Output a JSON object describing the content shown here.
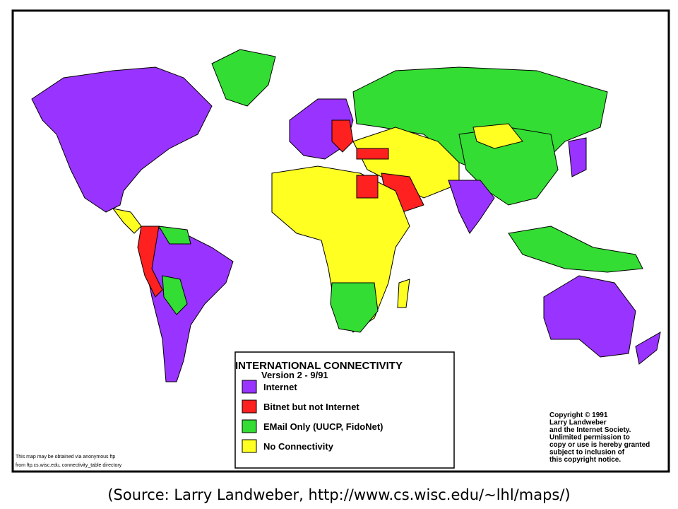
{
  "legend": {
    "title": "INTERNATIONAL CONNECTIVITY",
    "version": "Version 2  - 9/91",
    "items": [
      {
        "label": "Internet",
        "color": "#9933ff"
      },
      {
        "label": "Bitnet but not Internet",
        "color": "#ff2020"
      },
      {
        "label": "EMail Only (UUCP, FidoNet)",
        "color": "#33dd33"
      },
      {
        "label": "No Connectivity",
        "color": "#ffff22"
      }
    ]
  },
  "copyright": [
    "Copyright © 1991",
    "Larry Landweber",
    "and the Internet Society.",
    "Unlimited permission to",
    "copy or use is hereby granted",
    "subject to inclusion of",
    "this copyright notice."
  ],
  "note": [
    "This map may be obtained via anonymous ftp",
    "from ftp.cs.wisc.edu, connectivity_table directory"
  ],
  "caption": "(Source: Larry Landweber, http://www.cs.wisc.edu/~lhl/maps/)"
}
